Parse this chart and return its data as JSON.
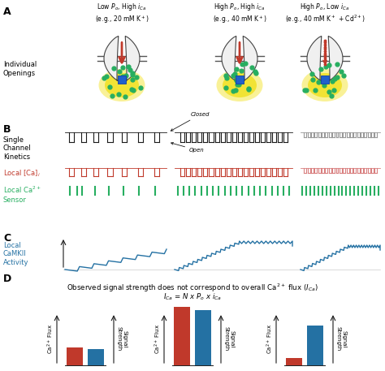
{
  "col_titles": [
    "Low $P_o$, High $i_{Ca}$\n(e.g., 20 mM K$^+$)",
    "High $P_o$, High $i_{Ca}$\n(e.g., 40 mM K$^+$)",
    "High $P_o$, Low $i_{Ca}$\n(e.g., 40 mM K$^+$ + Cd$^{2+}$)"
  ],
  "label_A": "Individual\nOpenings",
  "label_B1": "Single\nChannel\nKinetics",
  "label_B2": "Local [Ca]$_i$",
  "label_B3": "Local Ca$^{2+}$\nSensor",
  "label_C": "Local\nCaMKII\nActivity",
  "label_D_title": "Observed signal strength does not correspond to overall Ca$^{2+}$ flux ($I_{Ca}$)",
  "label_D_sub": "$I_{Ca}$ = $N$ x $P_o$ x $i_{Ca}$",
  "label_D_yL": "Ca$^{2+}$ Flux",
  "label_D_yR": "Signal\nStrength",
  "red": "#c0392b",
  "blue": "#2471a3",
  "green": "#27ae60",
  "black": "#1a1a1a",
  "gray": "#999999",
  "pink": "#d98080",
  "bar_red": [
    0.3,
    1.0,
    0.12
  ],
  "bar_blue": [
    0.28,
    0.95,
    0.68
  ]
}
